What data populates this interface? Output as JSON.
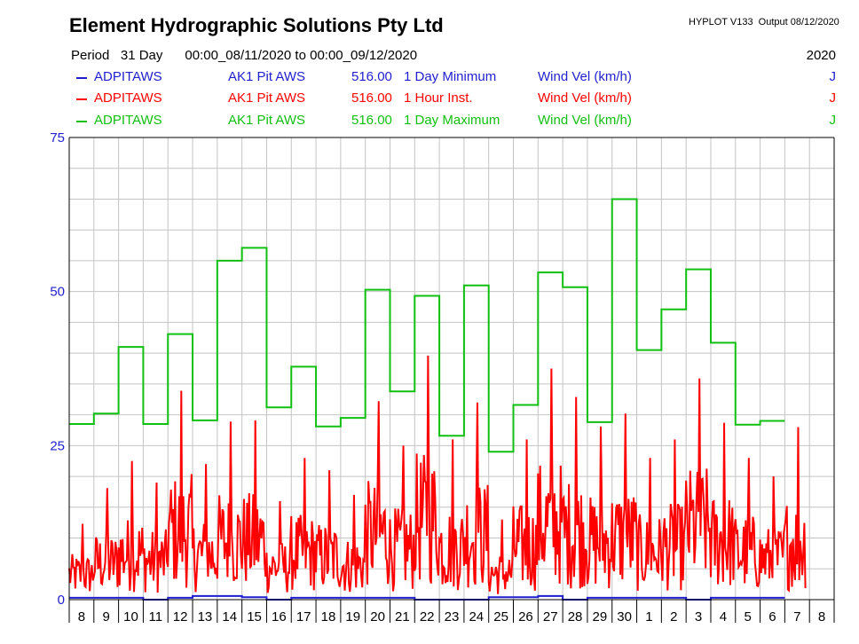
{
  "header": {
    "title": "Element Hydrographic Solutions Pty Ltd",
    "hyplot": "HYPLOT V133  Output 08/12/2020",
    "period_label": "Period",
    "period_value": "31 Day",
    "period_range": "00:00_08/11/2020 to 00:00_09/12/2020",
    "year": "2020"
  },
  "legend": [
    {
      "site": "ADPITAWS",
      "name": "AK1 Pit AWS",
      "code": "516.00",
      "stat": "1 Day Minimum",
      "variable": "Wind Vel (km/h)",
      "flag": "J",
      "color": "#1f1fd0"
    },
    {
      "site": "ADPITAWS",
      "name": "AK1 Pit AWS",
      "code": "516.00",
      "stat": "1 Hour Inst.",
      "variable": "Wind Vel (km/h)",
      "flag": "J",
      "color": "#ff0000"
    },
    {
      "site": "ADPITAWS",
      "name": "AK1 Pit AWS",
      "code": "516.00",
      "stat": "1 Day Maximum",
      "variable": "Wind Vel (km/h)",
      "flag": "J",
      "color": "#10c010"
    }
  ],
  "chart_data": {
    "type": "line",
    "ylim": [
      0,
      75
    ],
    "ytick_labels": [
      "0",
      "25",
      "50",
      "75"
    ],
    "x_tick_labels": [
      "8",
      "9",
      "10",
      "11",
      "12",
      "13",
      "14",
      "15",
      "16",
      "17",
      "18",
      "19",
      "20",
      "21",
      "22",
      "23",
      "24",
      "25",
      "26",
      "27",
      "28",
      "29",
      "30",
      "1",
      "2",
      "3",
      "4",
      "5",
      "6",
      "7",
      "8"
    ],
    "grid": true,
    "series": [
      {
        "name": "1 Day Minimum",
        "color": "#1f1fd0",
        "step": true,
        "values": [
          0.3,
          0.3,
          0.3,
          0.0,
          0.3,
          0.6,
          0.6,
          0.4,
          0.0,
          0.3,
          0.3,
          0.3,
          0.3,
          0.3,
          0.0,
          0.0,
          0.0,
          0.4,
          0.4,
          0.6,
          0.0,
          0.3,
          0.3,
          0.3,
          0.3,
          0.0,
          0.3,
          0.3,
          0.3
        ]
      },
      {
        "name": "1 Day Maximum",
        "color": "#10c010",
        "step": true,
        "values": [
          28.5,
          30.2,
          41.0,
          28.5,
          43.1,
          29.1,
          55.0,
          57.1,
          31.2,
          37.8,
          28.1,
          29.5,
          50.3,
          33.8,
          49.3,
          26.6,
          51.0,
          24.0,
          31.6,
          53.1,
          50.7,
          28.8,
          65.0,
          40.5,
          47.1,
          53.6,
          41.7,
          28.4,
          29.0
        ]
      },
      {
        "name": "1 Hour Inst.",
        "color": "#ff0000",
        "step": false,
        "day_peaks": [
          12.3,
          18.1,
          22.5,
          19.0,
          33.9,
          22.0,
          28.9,
          29.1,
          16.0,
          23.0,
          21.0,
          17.0,
          32.2,
          25.0,
          39.6,
          26.0,
          32.0,
          13.0,
          26.0,
          37.5,
          32.9,
          28.1,
          30.2,
          23.0,
          26.0,
          35.9,
          28.7,
          23.0,
          20.0,
          28.0
        ]
      }
    ]
  }
}
